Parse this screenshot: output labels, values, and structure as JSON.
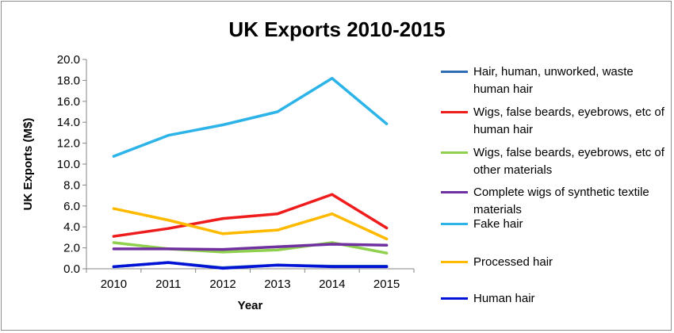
{
  "chart_data": {
    "type": "line",
    "title": "UK Exports 2010-2015",
    "xlabel": "Year",
    "ylabel": "UK Exports (M$)",
    "x": [
      "2010",
      "2011",
      "2012",
      "2013",
      "2014",
      "2015"
    ],
    "ylim": [
      0,
      20
    ],
    "yticks": [
      "0.0",
      "2.0",
      "4.0",
      "6.0",
      "8.0",
      "10.0",
      "12.0",
      "14.0",
      "16.0",
      "18.0",
      "20.0"
    ],
    "grid": false,
    "legend_position": "right",
    "series": [
      {
        "name": "Hair, human, unworked, waste human hair",
        "color": "#2e6db4",
        "values": [
          0.2,
          0.6,
          0.1,
          0.35,
          0.25,
          0.25
        ]
      },
      {
        "name": "Wigs, false beards, eyebrows, etc of human hair",
        "color": "#ee1c1c",
        "values": [
          3.1,
          3.85,
          4.8,
          5.25,
          7.1,
          3.9
        ]
      },
      {
        "name": "Wigs, false beards, eyebrows, etc of other materials",
        "color": "#8fd14f",
        "values": [
          2.5,
          1.9,
          1.6,
          1.8,
          2.5,
          1.5
        ]
      },
      {
        "name": "Complete wigs of synthetic textile materials",
        "color": "#7030a0",
        "values": [
          1.9,
          1.9,
          1.85,
          2.1,
          2.35,
          2.25
        ]
      },
      {
        "name": "Fake hair",
        "color": "#2cb3e8",
        "values": [
          10.75,
          12.75,
          13.75,
          15.0,
          18.2,
          13.85
        ]
      },
      {
        "name": "Processed hair",
        "color": "#ffba00",
        "values": [
          5.75,
          4.65,
          3.35,
          3.7,
          5.25,
          2.85
        ]
      },
      {
        "name": "Human hair",
        "color": "#0012d6",
        "values": [
          0.2,
          0.6,
          0.05,
          0.35,
          0.2,
          0.2
        ]
      }
    ]
  }
}
